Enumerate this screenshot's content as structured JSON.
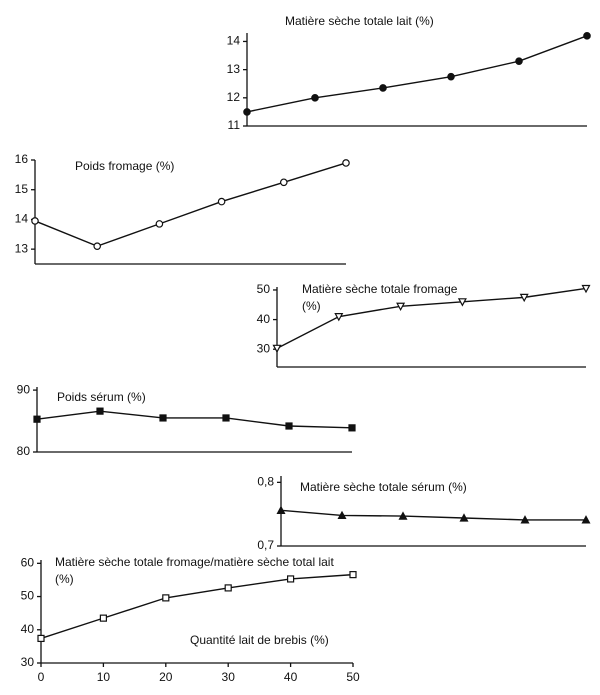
{
  "chart_data": [
    {
      "type": "line",
      "title": [
        "Matière sèche totale lait  (%)"
      ],
      "marker": "circle-filled",
      "x": [
        0,
        10,
        20,
        30,
        40,
        50
      ],
      "values": [
        11.5,
        12.0,
        12.35,
        12.75,
        13.3,
        14.2
      ],
      "xlim": [
        0,
        50
      ],
      "ylim": [
        11,
        14.3
      ],
      "yticks": [
        11,
        12,
        13,
        14
      ]
    },
    {
      "type": "line",
      "title": [
        "Poids fromage (%)"
      ],
      "marker": "circle-open",
      "x": [
        0,
        10,
        20,
        30,
        40,
        50
      ],
      "values": [
        13.95,
        13.1,
        13.85,
        14.6,
        15.25,
        15.9
      ],
      "xlim": [
        0,
        50
      ],
      "ylim": [
        12.5,
        16
      ],
      "yticks": [
        13,
        14,
        15,
        16
      ]
    },
    {
      "type": "line",
      "title": [
        "Matière sèche totale fromage",
        "(%)"
      ],
      "marker": "triangle-down-open",
      "x": [
        0,
        10,
        20,
        30,
        40,
        50
      ],
      "values": [
        30.3,
        41,
        44.5,
        46,
        47.5,
        50.5
      ],
      "xlim": [
        0,
        50
      ],
      "ylim": [
        24,
        51
      ],
      "yticks": [
        30,
        40,
        50
      ]
    },
    {
      "type": "line",
      "title": [
        "Poids sérum (%)"
      ],
      "marker": "square-filled",
      "x": [
        0,
        10,
        20,
        30,
        40,
        50
      ],
      "values": [
        85.3,
        86.6,
        85.5,
        85.5,
        84.2,
        83.9
      ],
      "xlim": [
        0,
        50
      ],
      "ylim": [
        80,
        90.5
      ],
      "yticks": [
        80,
        90
      ]
    },
    {
      "type": "line",
      "title": [
        "Matière sèche totale sérum (%)"
      ],
      "marker": "triangle-filled",
      "x": [
        0,
        10,
        20,
        30,
        40,
        50
      ],
      "values": [
        0.756,
        0.748,
        0.747,
        0.744,
        0.741,
        0.741
      ],
      "xlim": [
        0,
        50
      ],
      "ylim": [
        0.7,
        0.81
      ],
      "yticks": [
        {
          "value": 0.7,
          "label": "0,7"
        },
        {
          "value": 0.8,
          "label": "0,8"
        }
      ]
    },
    {
      "type": "line",
      "title": [
        "Matière sèche totale fromage/matière sèche total lait",
        "(%)"
      ],
      "marker": "square-open",
      "xlabel": "Quantité  lait de brebis (%)",
      "x": [
        0,
        10,
        20,
        30,
        40,
        50
      ],
      "values": [
        37.4,
        43.5,
        49.6,
        52.6,
        55.3,
        56.6
      ],
      "xlim": [
        0,
        50
      ],
      "xticks": [
        0,
        10,
        20,
        30,
        40,
        50
      ],
      "ylim": [
        30,
        61
      ],
      "yticks": [
        30,
        40,
        50,
        60
      ]
    }
  ]
}
